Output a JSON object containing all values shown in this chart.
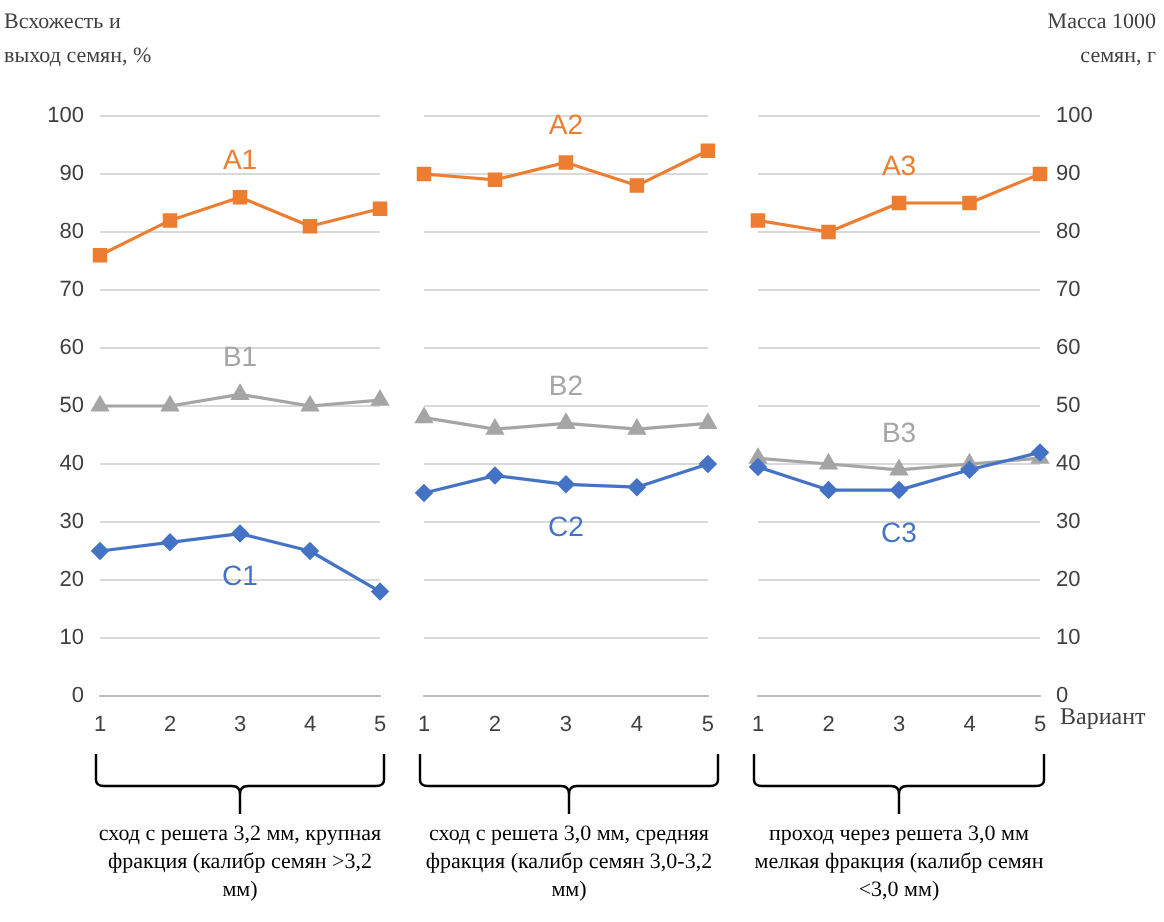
{
  "chart_data": [
    {
      "type": "line",
      "ylabel": "Всхожесть и выход семян, %",
      "categories": [
        "1",
        "2",
        "3",
        "4",
        "5"
      ],
      "ylim": [
        0,
        100
      ],
      "yticks": [
        0,
        10,
        20,
        30,
        40,
        50,
        60,
        70,
        80,
        90,
        100
      ],
      "grid": "y",
      "legend": false,
      "annotations": [
        "сход с решета 3,2 мм, крупная фракция (калибр семян >3,2 мм)"
      ],
      "series": [
        {
          "name": "A1",
          "color": "#ed7d31",
          "marker": "square",
          "values": [
            76,
            82,
            86,
            81,
            84
          ]
        },
        {
          "name": "B1",
          "color": "#a5a5a5",
          "marker": "triangle",
          "values": [
            50,
            50,
            52,
            50,
            51
          ]
        },
        {
          "name": "C1",
          "color": "#4472c4",
          "marker": "diamond",
          "values": [
            25,
            26.5,
            28,
            25,
            18
          ]
        }
      ]
    },
    {
      "type": "line",
      "categories": [
        "1",
        "2",
        "3",
        "4",
        "5"
      ],
      "ylim": [
        0,
        100
      ],
      "yticks": [
        0,
        10,
        20,
        30,
        40,
        50,
        60,
        70,
        80,
        90,
        100
      ],
      "tick_labels": "x",
      "grid": "y",
      "legend": false,
      "annotations": [
        "сход с решета 3,0 мм, средняя фракция (калибр семян 3,0-3,2 мм)"
      ],
      "series": [
        {
          "name": "A2",
          "color": "#ed7d31",
          "marker": "square",
          "values": [
            90,
            89,
            92,
            88,
            94
          ]
        },
        {
          "name": "B2",
          "color": "#a5a5a5",
          "marker": "triangle",
          "values": [
            48,
            46,
            47,
            46,
            47
          ]
        },
        {
          "name": "C2",
          "color": "#4472c4",
          "marker": "diamond",
          "values": [
            35,
            38,
            36.5,
            36,
            40
          ]
        }
      ]
    },
    {
      "type": "line",
      "xlabel": "Вариант",
      "y2label": "Масса 1000 семян, г",
      "categories": [
        "1",
        "2",
        "3",
        "4",
        "5"
      ],
      "y2lim": [
        0,
        100
      ],
      "y2ticks": [
        0,
        10,
        20,
        30,
        40,
        50,
        60,
        70,
        80,
        90,
        100
      ],
      "grid": "y",
      "legend": false,
      "annotations": [
        "проход через решета 3,0 мм мелкая фракция (калибр семян <3,0 мм)"
      ],
      "series": [
        {
          "name": "A3",
          "axis": "y2",
          "color": "#ed7d31",
          "marker": "square",
          "values": [
            82,
            80,
            85,
            85,
            90
          ]
        },
        {
          "name": "B3",
          "axis": "y2",
          "color": "#a5a5a5",
          "marker": "triangle",
          "values": [
            41,
            40,
            39,
            40,
            41
          ]
        },
        {
          "name": "C3",
          "axis": "y2",
          "color": "#4472c4",
          "marker": "diamond",
          "values": [
            39.5,
            35.5,
            35.5,
            39,
            42
          ]
        }
      ]
    }
  ]
}
